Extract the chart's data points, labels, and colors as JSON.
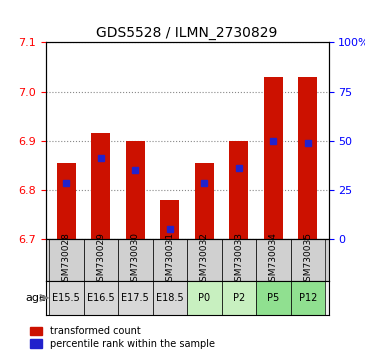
{
  "title": "GDS5528 / ILMN_2730829",
  "samples": [
    "GSM730028",
    "GSM730029",
    "GSM730030",
    "GSM730031",
    "GSM730032",
    "GSM730033",
    "GSM730034",
    "GSM730035"
  ],
  "ages": [
    "E15.5",
    "E16.5",
    "E17.5",
    "E18.5",
    "P0",
    "P2",
    "P5",
    "P12"
  ],
  "age_colors": [
    "#d0d0d0",
    "#d0d0d0",
    "#d0d0d0",
    "#d0d0d0",
    "#c8f0c8",
    "#c8f0c8",
    "#90e090",
    "#90e090"
  ],
  "bar_bottom": 6.7,
  "bar_tops": [
    6.855,
    6.915,
    6.9,
    6.78,
    6.855,
    6.9,
    7.03,
    7.03
  ],
  "percentile_values": [
    6.813,
    6.865,
    6.84,
    6.72,
    6.813,
    6.845,
    6.9,
    6.895
  ],
  "ylim_left": [
    6.7,
    7.1
  ],
  "ylim_right": [
    0,
    100
  ],
  "yticks_left": [
    6.7,
    6.8,
    6.9,
    7.0,
    7.1
  ],
  "yticks_right": [
    0,
    25,
    50,
    75,
    100
  ],
  "ytick_labels_right": [
    "0",
    "25",
    "50",
    "75",
    "100%"
  ],
  "bar_color": "#cc1100",
  "percentile_color": "#2222cc",
  "bar_width": 0.55,
  "grid_color": "#888888",
  "bg_color": "#ffffff",
  "xlabel_area_color": "#d0d0d0",
  "age_label": "age"
}
